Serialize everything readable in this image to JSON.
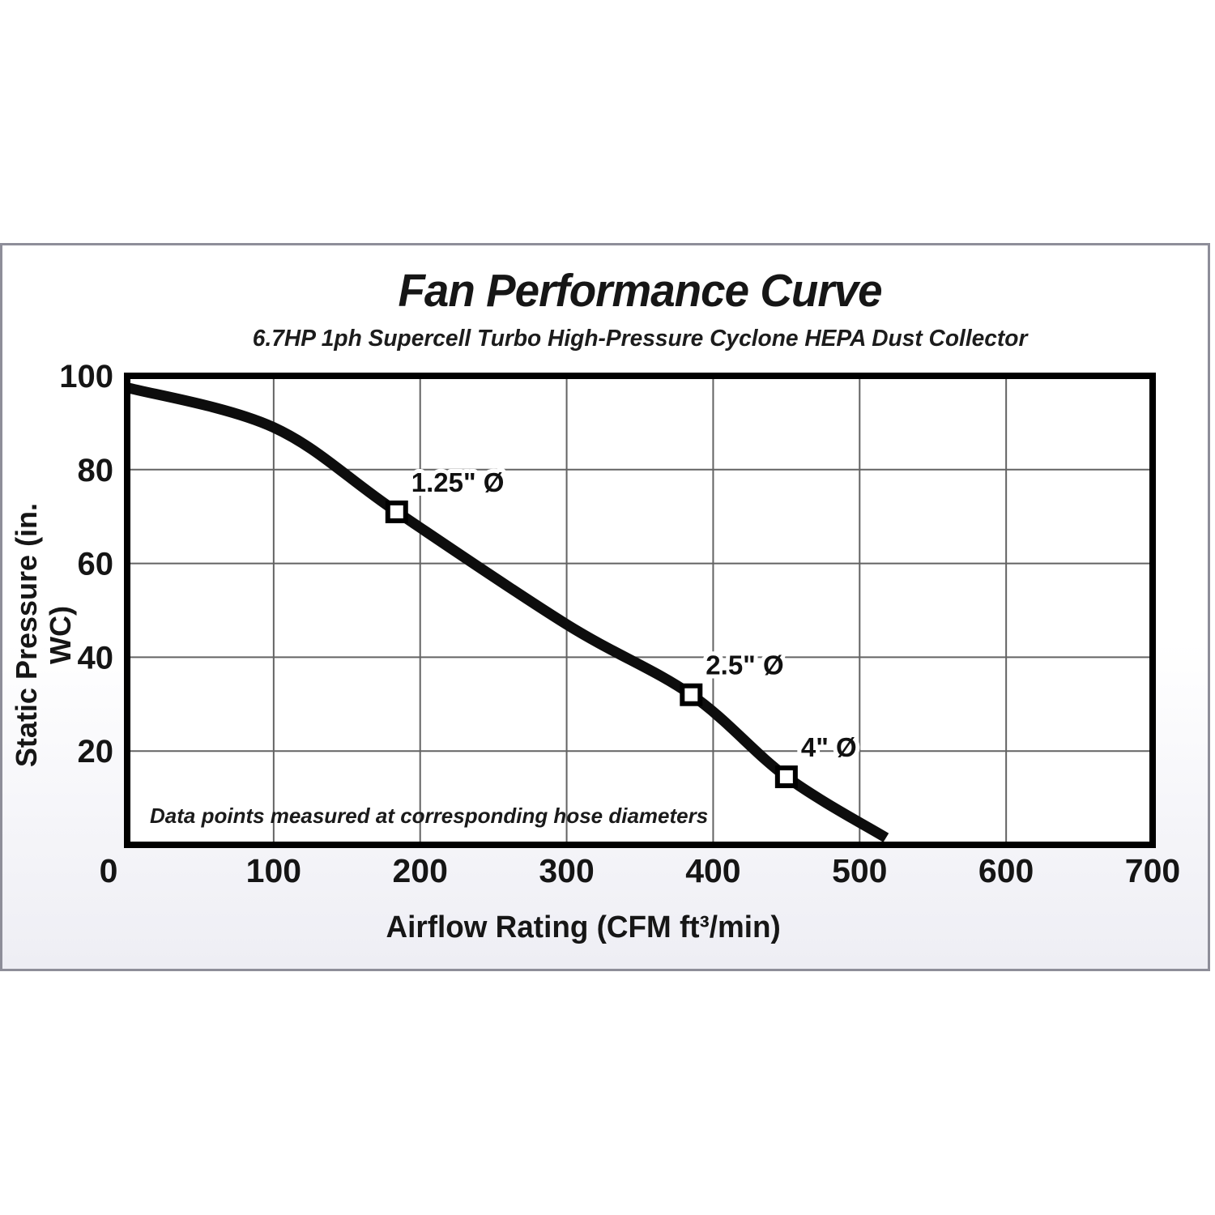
{
  "panel": {
    "border_color": "#8e8e99",
    "bg_top": "#ffffff",
    "bg_bottom": "#eeeef4"
  },
  "chart_data": {
    "type": "line",
    "title": "Fan Performance Curve",
    "subtitle": "6.7HP 1ph Supercell Turbo High-Pressure Cyclone HEPA Dust Collector",
    "xlabel": "Airflow Rating (CFM ft³/min)",
    "ylabel": "Static Pressure (in. WC)",
    "xlim": [
      0,
      700
    ],
    "ylim": [
      0,
      100
    ],
    "grid": true,
    "legend": "none",
    "grid_color": "#636363",
    "axis_color": "#000000",
    "line_color": "#0d0d0d",
    "line_width": 13,
    "x_ticks": [
      {
        "value": 0,
        "label": "0",
        "dx": -23
      },
      {
        "value": 100,
        "label": "100"
      },
      {
        "value": 200,
        "label": "200"
      },
      {
        "value": 300,
        "label": "300"
      },
      {
        "value": 400,
        "label": "400"
      },
      {
        "value": 500,
        "label": "500"
      },
      {
        "value": 600,
        "label": "600"
      },
      {
        "value": 700,
        "label": "700"
      }
    ],
    "y_ticks": [
      {
        "value": 20,
        "label": "20"
      },
      {
        "value": 40,
        "label": "40"
      },
      {
        "value": 60,
        "label": "60"
      },
      {
        "value": 80,
        "label": "80"
      },
      {
        "value": 100,
        "label": "100"
      }
    ],
    "series": [
      {
        "name": "fan-performance-curve",
        "points": [
          [
            0,
            97.5
          ],
          [
            100,
            89
          ],
          [
            184,
            71
          ],
          [
            300,
            47
          ],
          [
            385,
            32
          ],
          [
            450,
            14.5
          ],
          [
            518,
            1.5
          ]
        ]
      }
    ],
    "data_points": [
      {
        "x": 184,
        "y": 71,
        "label": "1.25\" Ø"
      },
      {
        "x": 385,
        "y": 32,
        "label": "2.5\" Ø"
      },
      {
        "x": 450,
        "y": 14.5,
        "label": "4\" Ø"
      }
    ],
    "annotation": "Data points measured at corresponding hose diameters"
  }
}
